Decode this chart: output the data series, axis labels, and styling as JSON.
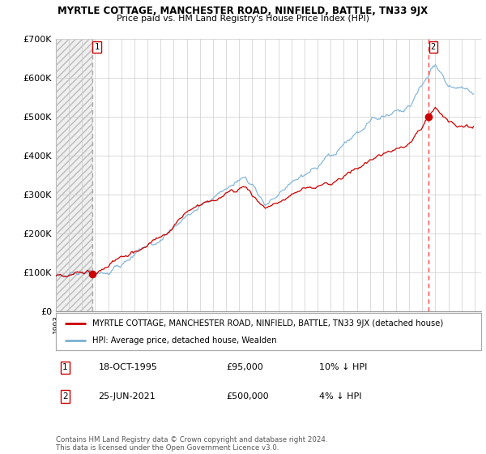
{
  "title": "MYRTLE COTTAGE, MANCHESTER ROAD, NINFIELD, BATTLE, TN33 9JX",
  "subtitle": "Price paid vs. HM Land Registry's House Price Index (HPI)",
  "legend_property": "MYRTLE COTTAGE, MANCHESTER ROAD, NINFIELD, BATTLE, TN33 9JX (detached house)",
  "legend_hpi": "HPI: Average price, detached house, Wealden",
  "transaction1_label": "1",
  "transaction1_date": "18-OCT-1995",
  "transaction1_price": "£95,000",
  "transaction1_hpi": "10% ↓ HPI",
  "transaction2_label": "2",
  "transaction2_date": "25-JUN-2021",
  "transaction2_price": "£500,000",
  "transaction2_hpi": "4% ↓ HPI",
  "footer": "Contains HM Land Registry data © Crown copyright and database right 2024.\nThis data is licensed under the Open Government Licence v3.0.",
  "ylim": [
    0,
    700000
  ],
  "yticks": [
    0,
    100000,
    200000,
    300000,
    400000,
    500000,
    600000,
    700000
  ],
  "ytick_labels": [
    "£0",
    "£100K",
    "£200K",
    "£300K",
    "£400K",
    "£500K",
    "£600K",
    "£700K"
  ],
  "property_color": "#cc0000",
  "hpi_color": "#7ab0d4",
  "vline1_color": "#aaaaaa",
  "vline2_color": "#ff4444",
  "hatch_color": "#d8d8d8",
  "grid_color": "#cccccc",
  "transaction1_x": 1995.79,
  "transaction1_y": 95000,
  "transaction2_x": 2021.49,
  "transaction2_y": 500000,
  "xlim_left": 1993.0,
  "xlim_right": 2025.5,
  "hatch_end_x": 1995.79
}
